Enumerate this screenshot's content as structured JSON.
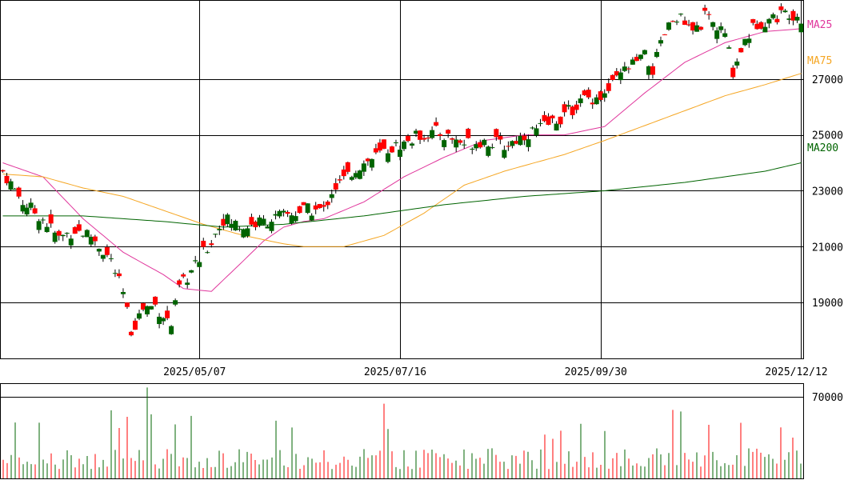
{
  "chart_data": {
    "type": "candlestick",
    "price_panel": {
      "ylim": [
        17000,
        29800
      ],
      "y_ticks": [
        19000,
        21000,
        23000,
        25000,
        27000
      ],
      "y_tick_labels": [
        "19000",
        "21000",
        "23000",
        "25000",
        "27000"
      ],
      "grid": true
    },
    "volume_panel": {
      "ylim": [
        0,
        81000
      ],
      "y_ticks": [
        70000
      ],
      "y_tick_labels": [
        "70000"
      ],
      "grid": true
    },
    "x_tick_labels": [
      "2025/05/07",
      "2025/07/16",
      "2025/09/30",
      "2025/12/12"
    ],
    "x_tick_index": [
      49,
      99,
      149,
      199
    ],
    "moving_averages": [
      {
        "name": "MA25",
        "color": "#e0369c",
        "points": [
          [
            0,
            24000
          ],
          [
            10,
            23500
          ],
          [
            20,
            22000
          ],
          [
            30,
            20800
          ],
          [
            40,
            20000
          ],
          [
            45,
            19500
          ],
          [
            52,
            19400
          ],
          [
            60,
            20500
          ],
          [
            65,
            21200
          ],
          [
            70,
            21700
          ],
          [
            75,
            21900
          ],
          [
            80,
            22000
          ],
          [
            90,
            22600
          ],
          [
            100,
            23500
          ],
          [
            110,
            24200
          ],
          [
            120,
            24800
          ],
          [
            130,
            25000
          ],
          [
            140,
            25000
          ],
          [
            150,
            25300
          ],
          [
            160,
            26500
          ],
          [
            170,
            27600
          ],
          [
            180,
            28300
          ],
          [
            190,
            28700
          ],
          [
            199,
            28800
          ]
        ]
      },
      {
        "name": "MA75",
        "color": "#f5a623",
        "points": [
          [
            0,
            23600
          ],
          [
            10,
            23500
          ],
          [
            20,
            23100
          ],
          [
            30,
            22800
          ],
          [
            40,
            22300
          ],
          [
            50,
            21800
          ],
          [
            60,
            21400
          ],
          [
            70,
            21100
          ],
          [
            75,
            21000
          ],
          [
            85,
            21000
          ],
          [
            95,
            21400
          ],
          [
            105,
            22200
          ],
          [
            115,
            23200
          ],
          [
            125,
            23700
          ],
          [
            140,
            24300
          ],
          [
            150,
            24800
          ],
          [
            165,
            25600
          ],
          [
            180,
            26400
          ],
          [
            190,
            26800
          ],
          [
            199,
            27200
          ]
        ]
      },
      {
        "name": "MA200",
        "color": "#006400",
        "points": [
          [
            0,
            22100
          ],
          [
            20,
            22100
          ],
          [
            40,
            21900
          ],
          [
            55,
            21700
          ],
          [
            70,
            21800
          ],
          [
            90,
            22100
          ],
          [
            110,
            22500
          ],
          [
            130,
            22800
          ],
          [
            150,
            23000
          ],
          [
            170,
            23300
          ],
          [
            190,
            23700
          ],
          [
            199,
            24000
          ]
        ]
      }
    ],
    "ma_labels": [
      "MA25",
      "MA75",
      "MA200"
    ],
    "ohlc": [],
    "volume": []
  }
}
